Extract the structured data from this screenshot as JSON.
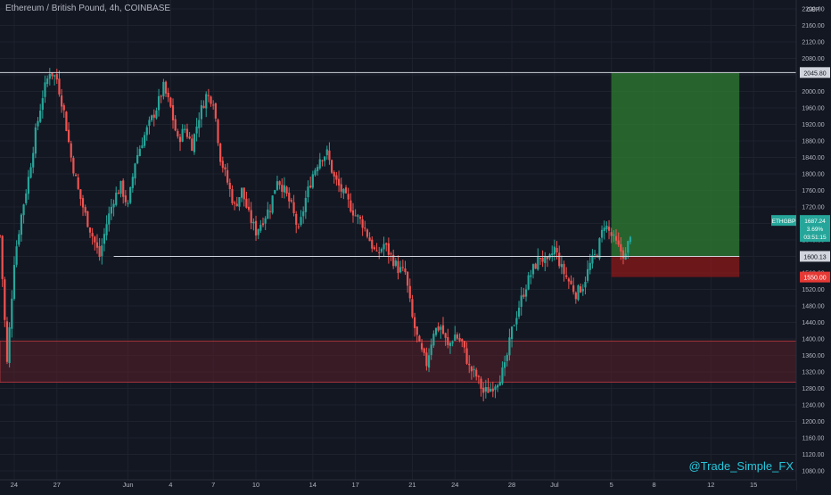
{
  "header": {
    "title": "Ethereum / British Pound, 4h, COINBASE"
  },
  "watermark": "@Trade_Simple_FX",
  "currency": "GBP",
  "colors": {
    "background": "#131722",
    "grid": "#1e222d",
    "bull": "#26a69a",
    "bear": "#ef5350",
    "profit_zone": "#2e7d32",
    "loss_zone": "#8b1a1a",
    "demand_zone": "#5a1f2a",
    "level_line": "#d1d4dc",
    "watermark": "#26c6da"
  },
  "chart_data": {
    "type": "candlestick",
    "symbol": "ETHGBP",
    "ylim": [
      1080,
      2200
    ],
    "y_ticks": [
      2200,
      2160,
      2120,
      2080,
      2040,
      2000,
      1960,
      1920,
      1880,
      1840,
      1800,
      1760,
      1720,
      1680,
      1640,
      1600,
      1560,
      1520,
      1480,
      1440,
      1400,
      1360,
      1320,
      1280,
      1240,
      1200,
      1160,
      1120,
      1080
    ],
    "y_tick_labels": [
      "2200.00",
      "2160.00",
      "2120.00",
      "2080.00",
      "2040.00",
      "2000.00",
      "1960.00",
      "1920.00",
      "1880.00",
      "1840.00",
      "1800.00",
      "1760.00",
      "1720.00",
      "1680.00",
      "1640.00",
      "1600.00",
      "1560.00",
      "1520.00",
      "1480.00",
      "1440.00",
      "1400.00",
      "1360.00",
      "1320.00",
      "1280.00",
      "1240.00",
      "1200.00",
      "1160.00",
      "1120.00",
      "1080.00"
    ],
    "x_tick_labels": [
      "24",
      "27",
      "Jun",
      "4",
      "7",
      "10",
      "14",
      "17",
      "21",
      "24",
      "28",
      "Jul",
      "5",
      "8",
      "12",
      "15"
    ],
    "x_tick_dates": [
      "2021-05-24",
      "2021-05-27",
      "2021-06-01",
      "2021-06-04",
      "2021-06-07",
      "2021-06-10",
      "2021-06-14",
      "2021-06-17",
      "2021-06-21",
      "2021-06-24",
      "2021-06-28",
      "2021-07-01",
      "2021-07-05",
      "2021-07-08",
      "2021-07-12",
      "2021-07-15"
    ],
    "x_range": [
      "2021-05-23",
      "2021-07-18"
    ],
    "last_candle_date": "2021-07-06",
    "close_path": [
      [
        "2021-05-23",
        1650
      ],
      [
        "2021-05-24",
        1340
      ],
      [
        "2021-05-24",
        1590
      ],
      [
        "2021-05-25",
        1700
      ],
      [
        "2021-05-25",
        1790
      ],
      [
        "2021-05-26",
        1900
      ],
      [
        "2021-05-26",
        1990
      ],
      [
        "2021-05-27",
        2050
      ],
      [
        "2021-05-27",
        2030
      ],
      [
        "2021-05-28",
        1950
      ],
      [
        "2021-05-28",
        1840
      ],
      [
        "2021-05-29",
        1760
      ],
      [
        "2021-05-29",
        1700
      ],
      [
        "2021-05-30",
        1650
      ],
      [
        "2021-05-30",
        1600
      ],
      [
        "2021-05-31",
        1680
      ],
      [
        "2021-05-31",
        1740
      ],
      [
        "2021-06-01",
        1770
      ],
      [
        "2021-06-01",
        1720
      ],
      [
        "2021-06-02",
        1830
      ],
      [
        "2021-06-02",
        1880
      ],
      [
        "2021-06-03",
        1920
      ],
      [
        "2021-06-03",
        1960
      ],
      [
        "2021-06-04",
        2010
      ],
      [
        "2021-06-04",
        1960
      ],
      [
        "2021-06-05",
        1880
      ],
      [
        "2021-06-05",
        1910
      ],
      [
        "2021-06-06",
        1870
      ],
      [
        "2021-06-06",
        1940
      ],
      [
        "2021-06-07",
        1990
      ],
      [
        "2021-06-07",
        1980
      ],
      [
        "2021-06-08",
        1840
      ],
      [
        "2021-06-08",
        1780
      ],
      [
        "2021-06-09",
        1720
      ],
      [
        "2021-06-09",
        1760
      ],
      [
        "2021-06-10",
        1700
      ],
      [
        "2021-06-10",
        1660
      ],
      [
        "2021-06-11",
        1690
      ],
      [
        "2021-06-11",
        1720
      ],
      [
        "2021-06-12",
        1790
      ],
      [
        "2021-06-12",
        1760
      ],
      [
        "2021-06-13",
        1720
      ],
      [
        "2021-06-13",
        1660
      ],
      [
        "2021-06-14",
        1740
      ],
      [
        "2021-06-14",
        1800
      ],
      [
        "2021-06-15",
        1840
      ],
      [
        "2021-06-15",
        1850
      ],
      [
        "2021-06-16",
        1790
      ],
      [
        "2021-06-16",
        1760
      ],
      [
        "2021-06-17",
        1730
      ],
      [
        "2021-06-17",
        1700
      ],
      [
        "2021-06-18",
        1680
      ],
      [
        "2021-06-18",
        1640
      ],
      [
        "2021-06-19",
        1600
      ],
      [
        "2021-06-19",
        1630
      ],
      [
        "2021-06-20",
        1600
      ],
      [
        "2021-06-20",
        1570
      ],
      [
        "2021-06-21",
        1560
      ],
      [
        "2021-06-21",
        1450
      ],
      [
        "2021-06-22",
        1380
      ],
      [
        "2021-06-22",
        1340
      ],
      [
        "2021-06-23",
        1420
      ],
      [
        "2021-06-23",
        1430
      ],
      [
        "2021-06-24",
        1380
      ],
      [
        "2021-06-24",
        1410
      ],
      [
        "2021-06-25",
        1390
      ],
      [
        "2021-06-25",
        1330
      ],
      [
        "2021-06-26",
        1310
      ],
      [
        "2021-06-26",
        1270
      ],
      [
        "2021-06-27",
        1280
      ],
      [
        "2021-06-27",
        1300
      ],
      [
        "2021-06-28",
        1330
      ],
      [
        "2021-06-28",
        1420
      ],
      [
        "2021-06-29",
        1480
      ],
      [
        "2021-06-29",
        1530
      ],
      [
        "2021-06-30",
        1570
      ],
      [
        "2021-06-30",
        1600
      ],
      [
        "2021-07-01",
        1580
      ],
      [
        "2021-07-01",
        1620
      ],
      [
        "2021-07-02",
        1570
      ],
      [
        "2021-07-02",
        1540
      ],
      [
        "2021-07-03",
        1510
      ],
      [
        "2021-07-03",
        1530
      ],
      [
        "2021-07-04",
        1580
      ],
      [
        "2021-07-04",
        1610
      ],
      [
        "2021-07-05",
        1680
      ],
      [
        "2021-07-05",
        1650
      ],
      [
        "2021-07-06",
        1620
      ],
      [
        "2021-07-06",
        1600
      ],
      [
        "2021-07-06",
        1687
      ]
    ],
    "horizontal_levels": [
      {
        "value": 2045.8,
        "label": "2045.80",
        "from_date": "2021-05-23",
        "to_date": "2021-07-18"
      },
      {
        "value": 1600.13,
        "label": "1600.13",
        "from_date": "2021-05-31",
        "to_date": "2021-07-14"
      }
    ],
    "zones": [
      {
        "kind": "demand",
        "from_date": "2021-05-23",
        "to_date": "2021-07-18",
        "y_low": 1295,
        "y_high": 1395
      },
      {
        "kind": "profit",
        "from_date": "2021-07-05",
        "to_date": "2021-07-14",
        "y_low": 1600.13,
        "y_high": 2045.8
      },
      {
        "kind": "loss",
        "from_date": "2021-07-05",
        "to_date": "2021-07-14",
        "y_low": 1550,
        "y_high": 1600.13
      }
    ],
    "position": {
      "entry": 1600.13,
      "target": 2045.8,
      "stop": 1550.0
    },
    "price_tags": {
      "current": {
        "symbol": "ETHGBP",
        "price": "1687.24",
        "change": "3.69%",
        "countdown": "03:51:15",
        "value": 1687.24
      },
      "stop": {
        "price": "1550.00",
        "value": 1550.0
      }
    }
  }
}
